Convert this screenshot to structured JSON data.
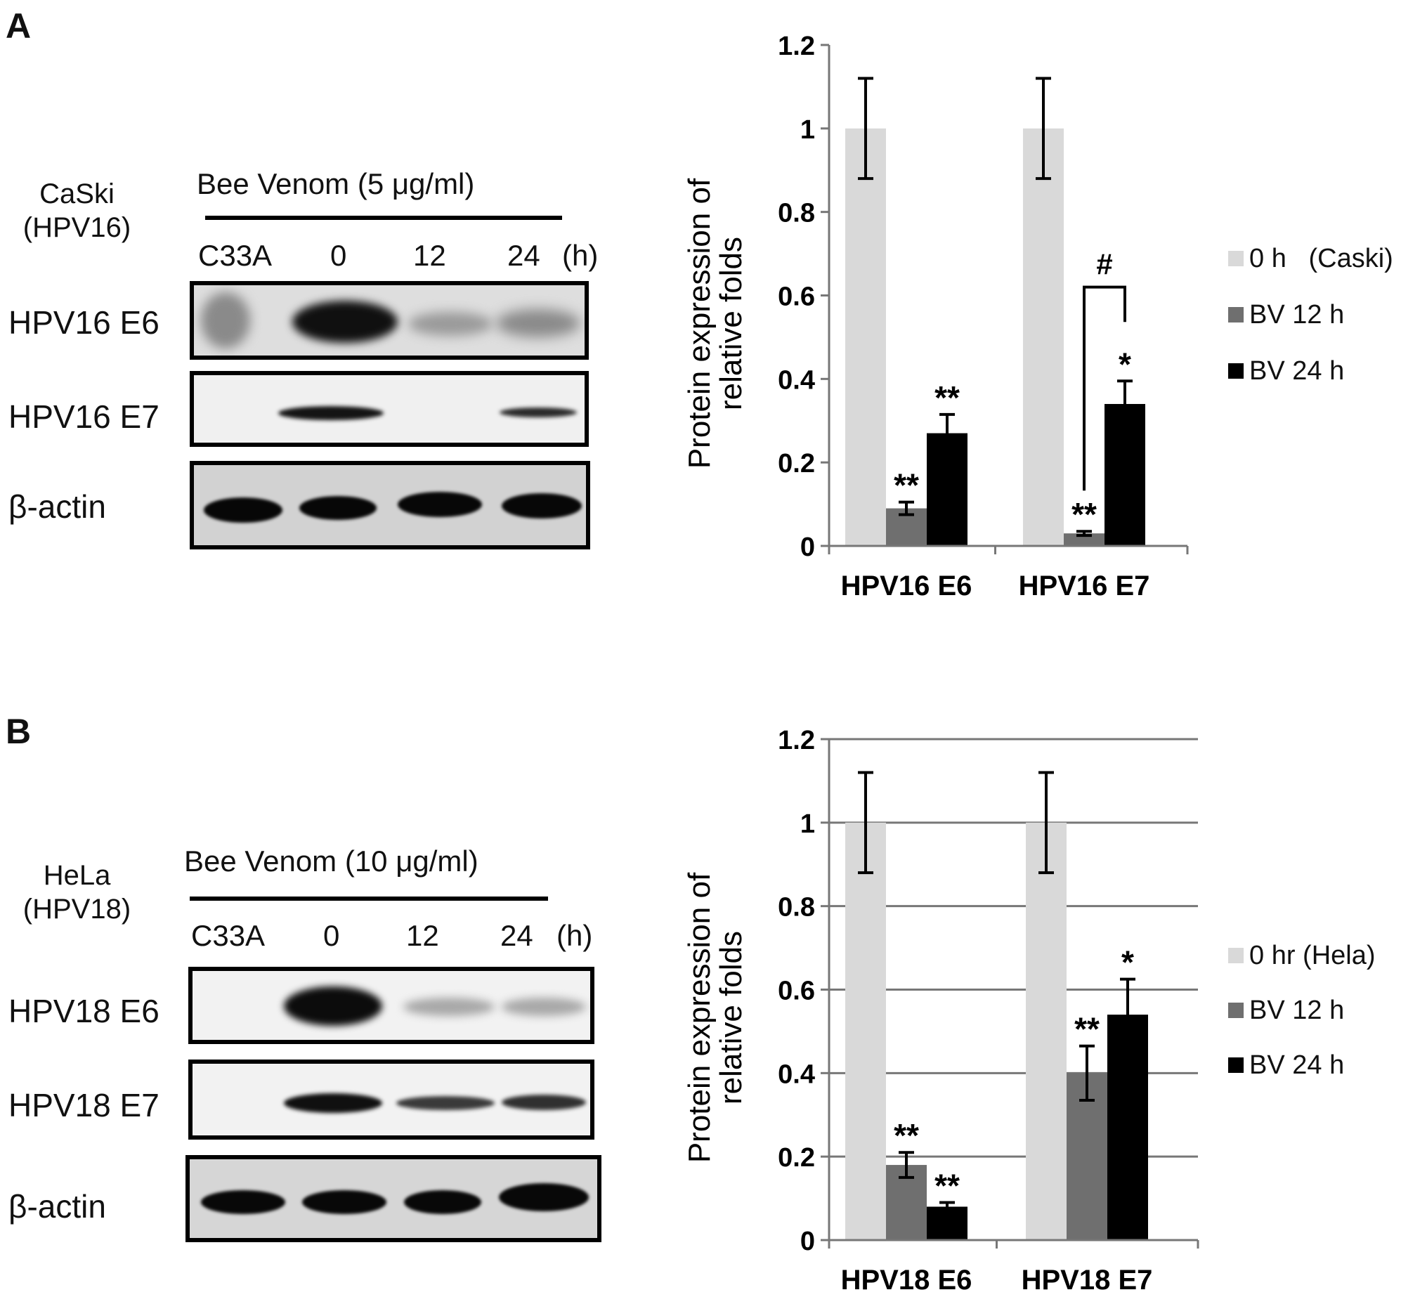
{
  "panels": [
    {
      "letter": "A",
      "cell_line": "CaSki",
      "cell_hpv": "(HPV16)",
      "treatment": "Bee Venom (5 μg/ml)",
      "lanes": [
        "C33A",
        "0",
        "12",
        "24"
      ],
      "unit": "(h)",
      "blot_rows": [
        "HPV16 E6",
        "HPV16 E7",
        "β-actin"
      ]
    },
    {
      "letter": "B",
      "cell_line": "HeLa",
      "cell_hpv": "(HPV18)",
      "treatment": "Bee Venom (10 μg/ml)",
      "lanes": [
        "C33A",
        "0",
        "12",
        "24"
      ],
      "unit": "(h)",
      "blot_rows": [
        "HPV18 E6",
        "HPV18 E7",
        "β-actin"
      ]
    }
  ],
  "colors": {
    "s0": "#d9d9d9",
    "s12": "#6f6f6f",
    "s24": "#000000",
    "grid": "#777777"
  },
  "chart_data": [
    {
      "type": "bar",
      "ylabel_line1": "Protein expression of",
      "ylabel_line2": "relative folds",
      "ylim": [
        0,
        1.2
      ],
      "yticks": [
        "0",
        "0.2",
        "0.4",
        "0.6",
        "0.8",
        "1",
        "1.2"
      ],
      "grid": false,
      "legend_position": "right",
      "categories": [
        "HPV16 E6",
        "HPV16 E7"
      ],
      "series": [
        {
          "name": "0 h   (Caski)",
          "values": [
            1.0,
            1.0
          ],
          "errors": [
            0.12,
            0.12
          ],
          "marks": [
            "",
            ""
          ]
        },
        {
          "name": "BV 12 h",
          "values": [
            0.09,
            0.03
          ],
          "errors": [
            0.015,
            0.005
          ],
          "marks": [
            "**",
            "**"
          ]
        },
        {
          "name": "BV 24 h",
          "values": [
            0.27,
            0.34
          ],
          "errors": [
            0.045,
            0.055
          ],
          "marks": [
            "**",
            "*"
          ]
        }
      ],
      "bracket_mark": "#"
    },
    {
      "type": "bar",
      "ylabel_line1": "Protein expression of",
      "ylabel_line2": "relative folds",
      "ylim": [
        0,
        1.2
      ],
      "yticks": [
        "0",
        "0.2",
        "0.4",
        "0.6",
        "0.8",
        "1",
        "1.2"
      ],
      "grid": true,
      "legend_position": "right",
      "categories": [
        "HPV18 E6",
        "HPV18 E7"
      ],
      "series": [
        {
          "name": "0 hr (Hela)",
          "values": [
            1.0,
            1.0
          ],
          "errors": [
            0.12,
            0.12
          ],
          "marks": [
            "",
            ""
          ]
        },
        {
          "name": "BV 12 h",
          "values": [
            0.18,
            0.4
          ],
          "errors": [
            0.03,
            0.065
          ],
          "marks": [
            "**",
            "**"
          ]
        },
        {
          "name": "BV 24 h",
          "values": [
            0.08,
            0.54
          ],
          "errors": [
            0.01,
            0.085
          ],
          "marks": [
            "**",
            "*"
          ]
        }
      ],
      "bracket_mark": ""
    }
  ]
}
